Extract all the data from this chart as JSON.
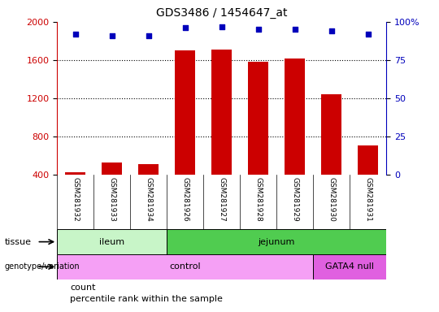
{
  "title": "GDS3486 / 1454647_at",
  "samples": [
    "GSM281932",
    "GSM281933",
    "GSM281934",
    "GSM281926",
    "GSM281927",
    "GSM281928",
    "GSM281929",
    "GSM281930",
    "GSM281931"
  ],
  "counts": [
    430,
    530,
    510,
    1700,
    1710,
    1580,
    1620,
    1240,
    710
  ],
  "percentile_ranks": [
    92,
    91,
    91,
    96,
    97,
    95,
    95,
    94,
    92
  ],
  "ylim_left": [
    400,
    2000
  ],
  "ylim_right": [
    0,
    100
  ],
  "yticks_left": [
    400,
    800,
    1200,
    1600,
    2000
  ],
  "yticks_right": [
    0,
    25,
    50,
    75,
    100
  ],
  "ytick_right_labels": [
    "0",
    "25",
    "50",
    "75",
    "100%"
  ],
  "tissue_groups": [
    {
      "label": "ileum",
      "start": 0,
      "end": 3,
      "color": "#c8f5c8"
    },
    {
      "label": "jejunum",
      "start": 3,
      "end": 9,
      "color": "#50cc50"
    }
  ],
  "genotype_groups": [
    {
      "label": "control",
      "start": 0,
      "end": 7,
      "color": "#f5a0f5"
    },
    {
      "label": "GATA4 null",
      "start": 7,
      "end": 9,
      "color": "#e060e0"
    }
  ],
  "bar_color": "#cc0000",
  "dot_color": "#0000bb",
  "left_axis_color": "#cc0000",
  "right_axis_color": "#0000bb",
  "grid_color": "#000000",
  "bg_color": "#ffffff",
  "plot_bg_color": "#ffffff",
  "tick_label_area_color": "#d4d4d4",
  "bar_width": 0.55,
  "legend_items": [
    {
      "label": "count",
      "color": "#cc0000"
    },
    {
      "label": "percentile rank within the sample",
      "color": "#0000bb"
    }
  ]
}
